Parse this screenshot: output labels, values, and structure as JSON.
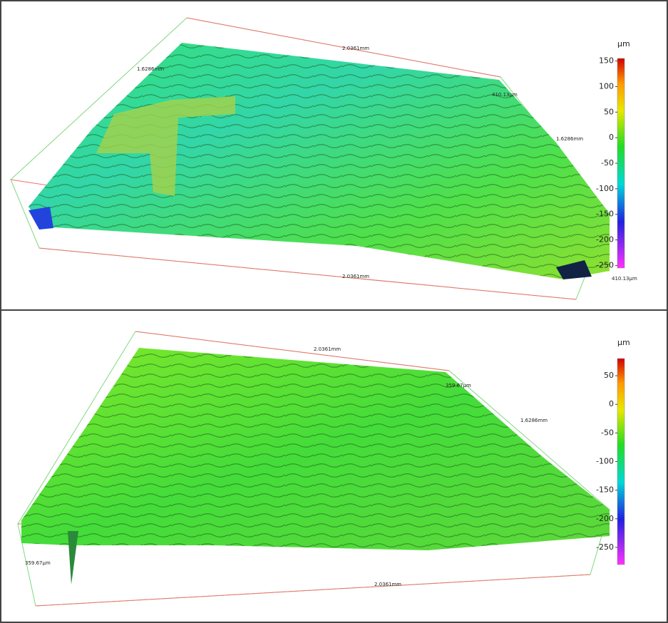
{
  "panels": [
    {
      "unit": "µm",
      "colorbar": {
        "range": [
          -255,
          155
        ],
        "ticks": [
          150,
          100,
          50,
          0,
          -50,
          -100,
          -150,
          -200,
          -250
        ]
      },
      "labels": {
        "top_edge": "2.0361mm",
        "left_edge": "1.6286mm",
        "right_edge": "1.6286mm",
        "bottom_edge": "2.0361mm",
        "height_top": "410.13µm",
        "height_bottom": "410.13µm"
      }
    },
    {
      "unit": "µm",
      "colorbar": {
        "range": [
          -280,
          80
        ],
        "ticks": [
          50,
          0,
          -50,
          -100,
          -150,
          -200,
          -250
        ]
      },
      "labels": {
        "top_edge": "2.0361mm",
        "right_edge": "1.6286mm",
        "bottom_edge": "2.0361mm",
        "height_top": "359.67µm",
        "height_bottom": "359.67µm"
      }
    }
  ]
}
